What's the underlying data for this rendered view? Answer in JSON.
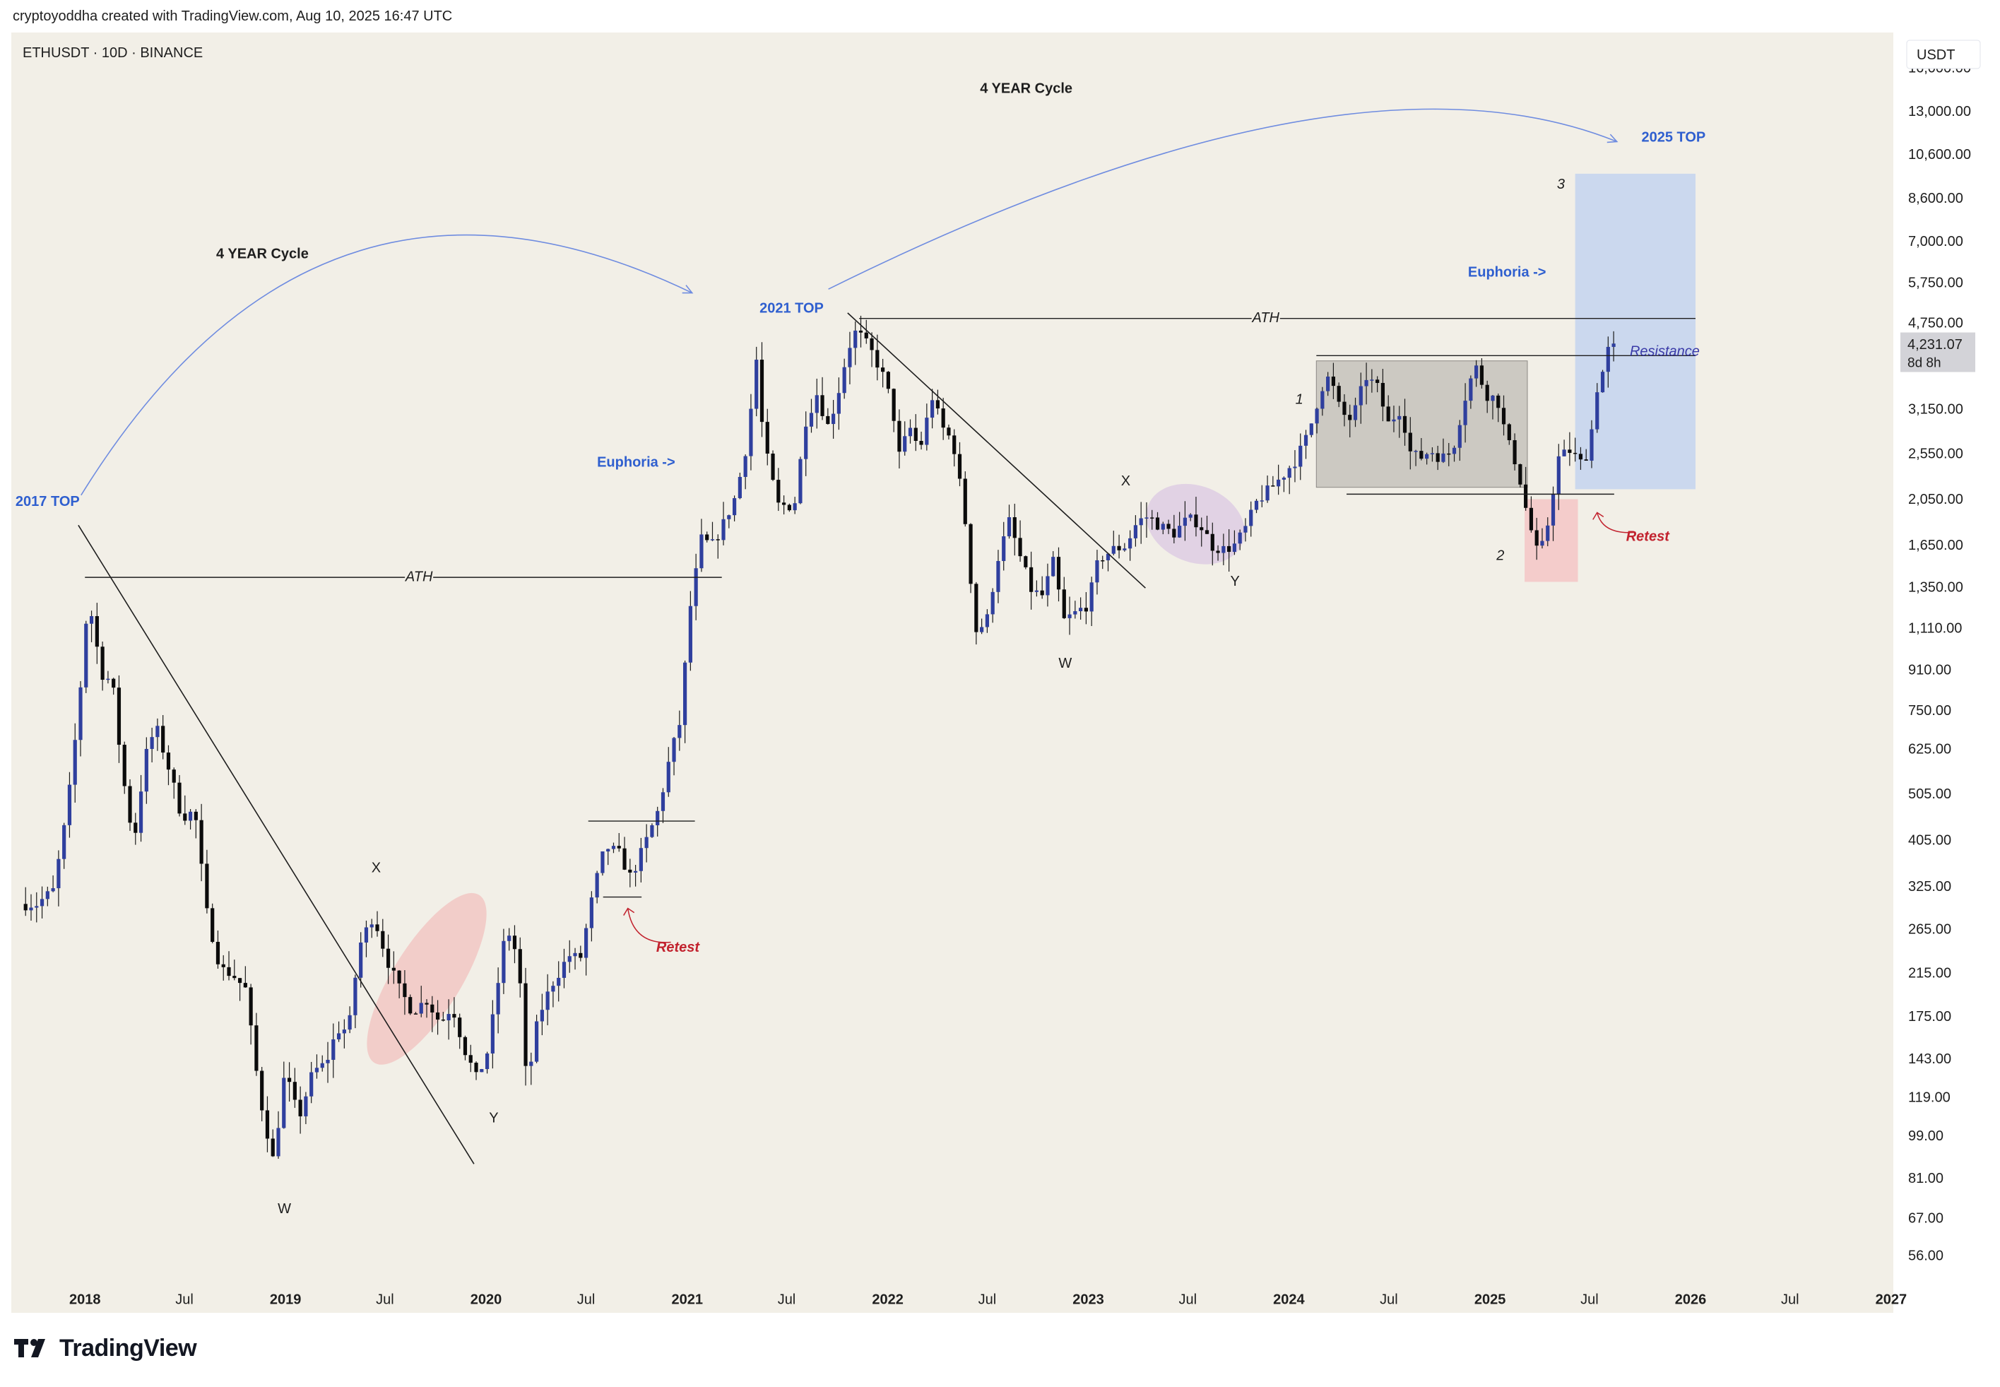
{
  "header": {
    "credit": "cryptoyoddha created with TradingView.com, Aug 10, 2025 16:47 UTC"
  },
  "footer": {
    "brand": "TradingView"
  },
  "chart_data": {
    "type": "candlestick",
    "symbol_label": "ETHUSDT · 10D · BINANCE",
    "currency_label": "USDT",
    "y_scale": "log",
    "ylim": [
      50,
      19000
    ],
    "xlim": [
      "2017-08-20",
      "2027-01-05"
    ],
    "colors": {
      "background": "#f2efe7",
      "up": "#2f3f9e",
      "down": "#0b0b0b",
      "blue_text": "#2f5fcf",
      "red_text": "#c2222e",
      "price_box": "#d3d3d8"
    },
    "y_ticks": [
      "16,000.00",
      "13,000.00",
      "10,600.00",
      "8,600.00",
      "7,000.00",
      "5,750.00",
      "4,750.00",
      "3,150.00",
      "2,550.00",
      "2,050.00",
      "1,650.00",
      "1,350.00",
      "1,110.00",
      "910.00",
      "750.00",
      "625.00",
      "505.00",
      "405.00",
      "325.00",
      "265.00",
      "215.00",
      "175.00",
      "143.00",
      "119.00",
      "99.00",
      "81.00",
      "67.00",
      "56.00"
    ],
    "x_ticks": [
      {
        "date": "2018-01-01",
        "label": "2018"
      },
      {
        "date": "2018-07-01",
        "label": "Jul"
      },
      {
        "date": "2019-01-01",
        "label": "2019"
      },
      {
        "date": "2019-07-01",
        "label": "Jul"
      },
      {
        "date": "2020-01-01",
        "label": "2020"
      },
      {
        "date": "2020-07-01",
        "label": "Jul"
      },
      {
        "date": "2021-01-01",
        "label": "2021"
      },
      {
        "date": "2021-07-01",
        "label": "Jul"
      },
      {
        "date": "2022-01-01",
        "label": "2022"
      },
      {
        "date": "2022-07-01",
        "label": "Jul"
      },
      {
        "date": "2023-01-01",
        "label": "2023"
      },
      {
        "date": "2023-07-01",
        "label": "Jul"
      },
      {
        "date": "2024-01-01",
        "label": "2024"
      },
      {
        "date": "2024-07-01",
        "label": "Jul"
      },
      {
        "date": "2025-01-01",
        "label": "2025"
      },
      {
        "date": "2025-07-01",
        "label": "Jul"
      },
      {
        "date": "2026-01-01",
        "label": "2026"
      },
      {
        "date": "2026-07-01",
        "label": "Jul"
      },
      {
        "date": "2027-01-01",
        "label": "2027"
      }
    ],
    "last_price": {
      "value": 4231.07,
      "label": "4,231.07",
      "countdown": "8d 8h"
    },
    "price_path": [
      [
        "2017-09-10",
        300
      ],
      [
        "2017-10-10",
        300
      ],
      [
        "2017-11-10",
        320
      ],
      [
        "2017-12-05",
        470
      ],
      [
        "2017-12-25",
        750
      ],
      [
        "2018-01-12",
        1300
      ],
      [
        "2018-02-05",
        900
      ],
      [
        "2018-02-25",
        860
      ],
      [
        "2018-03-15",
        560
      ],
      [
        "2018-04-05",
        400
      ],
      [
        "2018-04-25",
        600
      ],
      [
        "2018-05-15",
        700
      ],
      [
        "2018-06-10",
        560
      ],
      [
        "2018-07-01",
        455
      ],
      [
        "2018-07-25",
        465
      ],
      [
        "2018-08-15",
        290
      ],
      [
        "2018-09-10",
        220
      ],
      [
        "2018-10-01",
        215
      ],
      [
        "2018-10-25",
        200
      ],
      [
        "2018-11-20",
        120
      ],
      [
        "2018-12-15",
        88
      ],
      [
        "2019-01-05",
        135
      ],
      [
        "2019-01-30",
        108
      ],
      [
        "2019-02-25",
        135
      ],
      [
        "2019-03-20",
        140
      ],
      [
        "2019-04-10",
        165
      ],
      [
        "2019-05-01",
        165
      ],
      [
        "2019-05-20",
        245
      ],
      [
        "2019-06-15",
        285
      ],
      [
        "2019-07-10",
        230
      ],
      [
        "2019-08-01",
        200
      ],
      [
        "2019-08-25",
        180
      ],
      [
        "2019-09-20",
        190
      ],
      [
        "2019-10-15",
        170
      ],
      [
        "2019-11-05",
        185
      ],
      [
        "2019-11-28",
        150
      ],
      [
        "2019-12-20",
        130
      ],
      [
        "2020-01-10",
        150
      ],
      [
        "2020-02-12",
        270
      ],
      [
        "2020-03-05",
        230
      ],
      [
        "2020-03-20",
        125
      ],
      [
        "2020-04-10",
        175
      ],
      [
        "2020-05-05",
        205
      ],
      [
        "2020-06-05",
        235
      ],
      [
        "2020-06-25",
        230
      ],
      [
        "2020-07-20",
        320
      ],
      [
        "2020-08-10",
        395
      ],
      [
        "2020-09-05",
        380
      ],
      [
        "2020-09-25",
        340
      ],
      [
        "2020-10-20",
        395
      ],
      [
        "2020-11-15",
        470
      ],
      [
        "2020-12-05",
        600
      ],
      [
        "2020-12-25",
        720
      ],
      [
        "2021-01-10",
        1200
      ],
      [
        "2021-02-01",
        1700
      ],
      [
        "2021-02-20",
        1650
      ],
      [
        "2021-03-10",
        1800
      ],
      [
        "2021-04-05",
        2100
      ],
      [
        "2021-04-25",
        2700
      ],
      [
        "2021-05-12",
        4000
      ],
      [
        "2021-05-25",
        2700
      ],
      [
        "2021-06-20",
        2000
      ],
      [
        "2021-07-20",
        2000
      ],
      [
        "2021-08-10",
        3000
      ],
      [
        "2021-08-30",
        3400
      ],
      [
        "2021-09-20",
        2900
      ],
      [
        "2021-10-10",
        3500
      ],
      [
        "2021-10-25",
        4200
      ],
      [
        "2021-11-10",
        4600
      ],
      [
        "2021-12-05",
        4200
      ],
      [
        "2021-12-25",
        3800
      ],
      [
        "2022-01-15",
        3200
      ],
      [
        "2022-01-25",
        2500
      ],
      [
        "2022-02-15",
        2900
      ],
      [
        "2022-03-05",
        2600
      ],
      [
        "2022-03-28",
        3350
      ],
      [
        "2022-04-15",
        2900
      ],
      [
        "2022-05-05",
        2700
      ],
      [
        "2022-05-25",
        1950
      ],
      [
        "2022-06-15",
        1100
      ],
      [
        "2022-07-05",
        1150
      ],
      [
        "2022-07-25",
        1550
      ],
      [
        "2022-08-15",
        1850
      ],
      [
        "2022-09-05",
        1550
      ],
      [
        "2022-09-25",
        1330
      ],
      [
        "2022-10-15",
        1300
      ],
      [
        "2022-11-05",
        1550
      ],
      [
        "2022-11-20",
        1150
      ],
      [
        "2022-12-15",
        1200
      ],
      [
        "2023-01-05",
        1250
      ],
      [
        "2023-01-25",
        1550
      ],
      [
        "2023-02-20",
        1620
      ],
      [
        "2023-03-15",
        1650
      ],
      [
        "2023-04-05",
        1850
      ],
      [
        "2023-04-25",
        1900
      ],
      [
        "2023-05-20",
        1800
      ],
      [
        "2023-06-10",
        1750
      ],
      [
        "2023-07-05",
        1870
      ],
      [
        "2023-07-25",
        1850
      ],
      [
        "2023-08-20",
        1650
      ],
      [
        "2023-09-10",
        1620
      ],
      [
        "2023-10-01",
        1660
      ],
      [
        "2023-10-20",
        1800
      ],
      [
        "2023-11-10",
        2050
      ],
      [
        "2023-12-01",
        2150
      ],
      [
        "2023-12-25",
        2300
      ],
      [
        "2024-01-20",
        2500
      ],
      [
        "2024-02-10",
        2800
      ],
      [
        "2024-03-05",
        3500
      ],
      [
        "2024-03-20",
        3700
      ],
      [
        "2024-04-10",
        3100
      ],
      [
        "2024-04-30",
        3000
      ],
      [
        "2024-05-25",
        3700
      ],
      [
        "2024-06-15",
        3500
      ],
      [
        "2024-07-05",
        2950
      ],
      [
        "2024-07-30",
        3200
      ],
      [
        "2024-08-10",
        2600
      ],
      [
        "2024-08-30",
        2500
      ],
      [
        "2024-09-20",
        2600
      ],
      [
        "2024-10-10",
        2500
      ],
      [
        "2024-10-30",
        2600
      ],
      [
        "2024-11-20",
        3300
      ],
      [
        "2024-12-10",
        3900
      ],
      [
        "2024-12-30",
        3400
      ],
      [
        "2025-01-20",
        3300
      ],
      [
        "2025-02-05",
        2750
      ],
      [
        "2025-02-25",
        2400
      ],
      [
        "2025-03-15",
        1900
      ],
      [
        "2025-04-05",
        1550
      ],
      [
        "2025-04-20",
        1800
      ],
      [
        "2025-05-10",
        2500
      ],
      [
        "2025-05-30",
        2600
      ],
      [
        "2025-06-20",
        2450
      ],
      [
        "2025-07-05",
        2600
      ],
      [
        "2025-07-20",
        3500
      ],
      [
        "2025-07-31",
        3800
      ],
      [
        "2025-08-10",
        4231
      ]
    ],
    "hlines": [
      {
        "name": "ath-2017-line",
        "from": "2018-01-01",
        "to": "2021-03-05",
        "price": 1420,
        "label": "ATH"
      },
      {
        "name": "ath-2021-line",
        "from": "2021-11-10",
        "to": "2026-01-10",
        "price": 4870,
        "label": "ATH"
      },
      {
        "name": "resistance-line",
        "from": "2024-02-20",
        "to": "2026-01-10",
        "price": 4080,
        "label": "Resistance"
      },
      {
        "name": "range-support-line",
        "from": "2024-04-15",
        "to": "2025-08-15",
        "price": 2110
      },
      {
        "name": "retest-2020-level",
        "from": "2020-07-05",
        "to": "2021-01-15",
        "price": 445
      },
      {
        "name": "retest-2020-base",
        "from": "2020-08-01",
        "to": "2020-10-10",
        "price": 310
      }
    ],
    "trendlines": [
      {
        "name": "downtrend-2018-line",
        "from": [
          "2017-12-20",
          1820
        ],
        "to": [
          "2019-12-10",
          87
        ]
      },
      {
        "name": "downtrend-2022-line",
        "from": [
          "2021-10-20",
          5000
        ],
        "to": [
          "2023-04-15",
          1350
        ]
      }
    ],
    "zones": [
      {
        "name": "range-box",
        "from": "2024-02-20",
        "to": "2025-03-10",
        "low": 2180,
        "high": 3980,
        "fill": "#c5c2bb",
        "stroke": "#8c8a85"
      },
      {
        "name": "correction-box",
        "from": "2025-03-05",
        "to": "2025-06-10",
        "low": 1390,
        "high": 2060,
        "fill": "#f4c6c6"
      },
      {
        "name": "target-box",
        "from": "2025-06-05",
        "to": "2026-01-10",
        "low": 2160,
        "high": 9700,
        "fill": "#c4d3ef"
      }
    ],
    "ellipses": [
      {
        "name": "xy-correction-ellipse-2019",
        "c": [
          "2019-09-15",
          210
        ],
        "rx": "2019-09-01",
        "ry_price": 175,
        "color": "#f1c4c2",
        "rot": -58
      },
      {
        "name": "xy-correction-ellipse-2023",
        "c": [
          "2023-07-15",
          1830
        ],
        "color": "#dccbe3",
        "rot": 22
      }
    ],
    "arcs": [
      {
        "name": "cycle-arc-2017",
        "from": [
          "2017-12-25",
          2100
        ],
        "ctrl": [
          "2019-03-01",
          13000
        ],
        "to": [
          "2021-01-10",
          5500
        ]
      },
      {
        "name": "cycle-arc-2021",
        "from": [
          "2021-09-15",
          5600
        ],
        "ctrl": [
          "2024-04-15",
          19000
        ],
        "to": [
          "2025-08-20",
          11300
        ]
      }
    ],
    "annotations": [
      {
        "name": "label-4-year-cycle-1",
        "text": "4 YEAR Cycle",
        "date": "2018-11-20",
        "price": 6600,
        "color": "#1e1e1e",
        "bold": true
      },
      {
        "name": "label-4-year-cycle-2",
        "text": "4 YEAR Cycle",
        "date": "2022-09-10",
        "price": 14500,
        "color": "#1e1e1e",
        "bold": true
      },
      {
        "name": "label-2017-top",
        "text": "2017 TOP",
        "date": "2017-10-25",
        "price": 2030,
        "color": "#2f5fcf",
        "bold": true
      },
      {
        "name": "label-2021-top",
        "text": "2021 TOP",
        "date": "2021-07-10",
        "price": 5100,
        "color": "#2f5fcf",
        "bold": true
      },
      {
        "name": "label-2025-top",
        "text": "2025 TOP",
        "date": "2025-12-01",
        "price": 11500,
        "color": "#2f5fcf",
        "bold": true
      },
      {
        "name": "label-euphoria-2021",
        "text": "Euphoria ->",
        "date": "2020-09-30",
        "price": 2450,
        "color": "#2f5fcf",
        "bold": true
      },
      {
        "name": "label-euphoria-2025",
        "text": "Euphoria ->",
        "date": "2025-02-01",
        "price": 6050,
        "color": "#2f5fcf",
        "bold": true
      },
      {
        "name": "label-ath-2017",
        "text": "ATH",
        "date": "2019-09-01",
        "price": 1420,
        "color": "#1e1e1e",
        "italic": true
      },
      {
        "name": "label-ath-2021",
        "text": "ATH",
        "date": "2023-11-20",
        "price": 4870,
        "color": "#1e1e1e",
        "italic": true
      },
      {
        "name": "label-resistance",
        "text": "Resistance",
        "date": "2025-11-15",
        "price": 4150,
        "color": "#3a3aa8",
        "italic": true
      },
      {
        "name": "label-retest-2020",
        "text": "Retest",
        "date": "2020-12-15",
        "price": 243,
        "color": "#c2222e",
        "italic": true,
        "bold": true
      },
      {
        "name": "label-retest-2025",
        "text": "Retest",
        "date": "2025-10-15",
        "price": 1720,
        "color": "#c2222e",
        "italic": true,
        "bold": true
      },
      {
        "name": "label-x-2019",
        "text": "X",
        "date": "2019-06-15",
        "price": 355,
        "color": "#1e1e1e"
      },
      {
        "name": "label-y-2019",
        "text": "Y",
        "date": "2020-01-15",
        "price": 108,
        "color": "#1e1e1e"
      },
      {
        "name": "label-w-2018",
        "text": "W",
        "date": "2018-12-30",
        "price": 70,
        "color": "#1e1e1e"
      },
      {
        "name": "label-x-2023",
        "text": "X",
        "date": "2023-03-10",
        "price": 2240,
        "color": "#1e1e1e"
      },
      {
        "name": "label-y-2023",
        "text": "Y",
        "date": "2023-09-25",
        "price": 1390,
        "color": "#1e1e1e"
      },
      {
        "name": "label-w-2022",
        "text": "W",
        "date": "2022-11-20",
        "price": 940,
        "color": "#1e1e1e"
      },
      {
        "name": "label-wave-1",
        "text": "1",
        "date": "2024-01-20",
        "price": 3300,
        "color": "#1e1e1e",
        "italic": true
      },
      {
        "name": "label-wave-2",
        "text": "2",
        "date": "2025-01-20",
        "price": 1570,
        "color": "#1e1e1e",
        "italic": true
      },
      {
        "name": "label-wave-3",
        "text": "3",
        "date": "2025-05-10",
        "price": 9200,
        "color": "#1e1e1e",
        "italic": true
      }
    ]
  }
}
